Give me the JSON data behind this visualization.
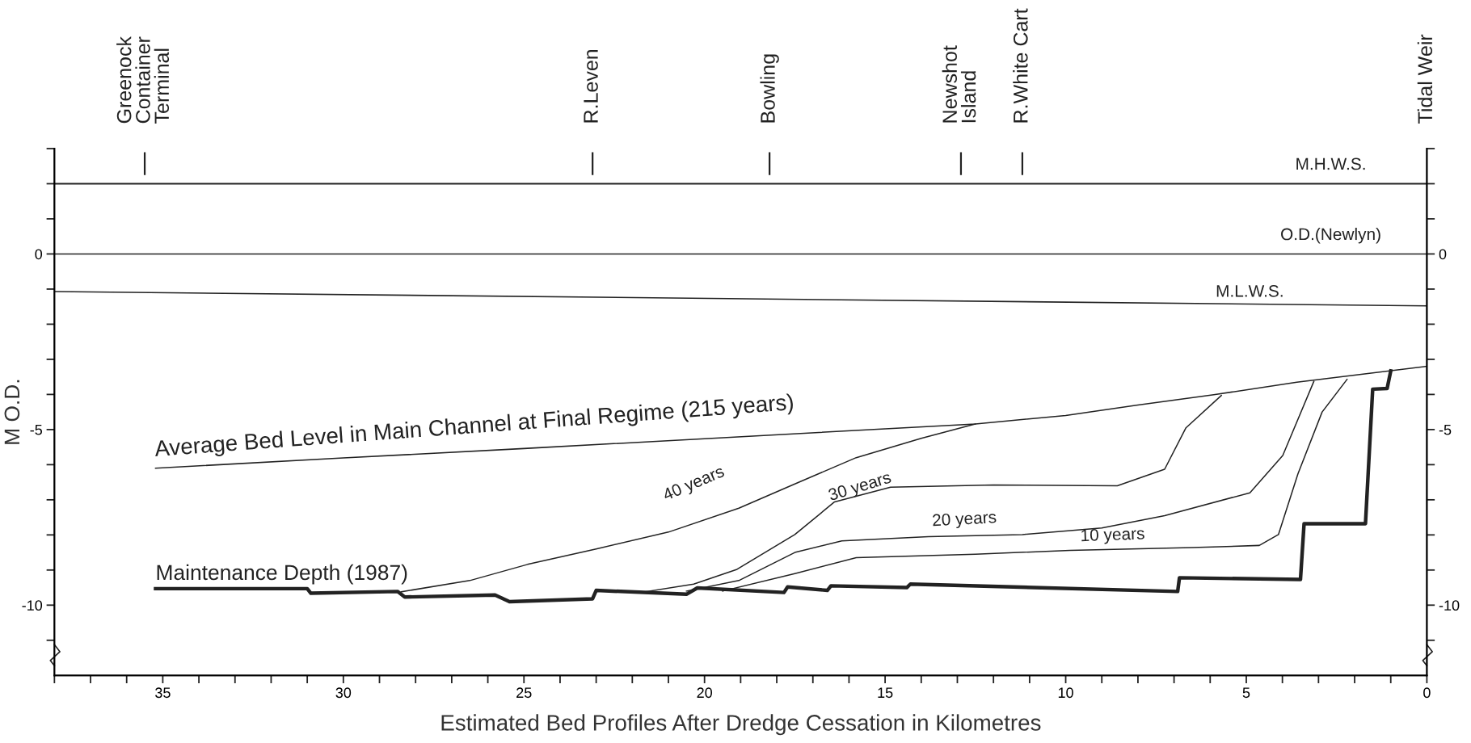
{
  "chart_data": {
    "type": "line",
    "xlabel": "Estimated Bed Profiles After Dredge Cessation in Kilometres",
    "ylabel": "M O.D.",
    "xlim": [
      38,
      0
    ],
    "ylim": [
      -12,
      3
    ],
    "y2lim": [
      -12,
      3
    ],
    "xticks": [
      0,
      {
        "value": 1,
        "label": null
      },
      {
        "value": 2,
        "label": null
      },
      {
        "value": 3,
        "label": null
      },
      {
        "value": 4,
        "label": null
      },
      5,
      {
        "value": 6,
        "label": null
      },
      {
        "value": 7,
        "label": null
      },
      {
        "value": 8,
        "label": null
      },
      {
        "value": 9,
        "label": null
      },
      10,
      {
        "value": 11,
        "label": null
      },
      {
        "value": 12,
        "label": null
      },
      {
        "value": 13,
        "label": null
      },
      {
        "value": 14,
        "label": null
      },
      15,
      {
        "value": 16,
        "label": null
      },
      {
        "value": 17,
        "label": null
      },
      {
        "value": 18,
        "label": null
      },
      {
        "value": 19,
        "label": null
      },
      20,
      {
        "value": 21,
        "label": null
      },
      {
        "value": 22,
        "label": null
      },
      {
        "value": 23,
        "label": null
      },
      {
        "value": 24,
        "label": null
      },
      25,
      {
        "value": 26,
        "label": null
      },
      {
        "value": 27,
        "label": null
      },
      {
        "value": 28,
        "label": null
      },
      {
        "value": 29,
        "label": null
      },
      30,
      {
        "value": 31,
        "label": null
      },
      {
        "value": 32,
        "label": null
      },
      {
        "value": 33,
        "label": null
      },
      {
        "value": 34,
        "label": null
      },
      35,
      {
        "value": 36,
        "label": null
      },
      {
        "value": 37,
        "label": null
      },
      {
        "value": 38,
        "label": null
      }
    ],
    "yticks": [
      {
        "value": -11,
        "label": null
      },
      -10,
      {
        "value": -9,
        "label": null
      },
      {
        "value": -8,
        "label": null
      },
      {
        "value": -7,
        "label": null
      },
      {
        "value": -6,
        "label": null
      },
      -5,
      {
        "value": -4,
        "label": null
      },
      {
        "value": -3,
        "label": null
      },
      {
        "value": -2,
        "label": null
      },
      {
        "value": -1,
        "label": null
      },
      0,
      {
        "value": 1,
        "label": null
      },
      {
        "value": 2,
        "label": null
      },
      {
        "value": 3,
        "label": null
      }
    ],
    "y2ticks": [
      {
        "value": -11,
        "label": null
      },
      -10,
      {
        "value": -9,
        "label": null
      },
      {
        "value": -8,
        "label": null
      },
      {
        "value": -7,
        "label": null
      },
      {
        "value": -6,
        "label": null
      },
      -5,
      {
        "value": -4,
        "label": null
      },
      {
        "value": -3,
        "label": null
      },
      {
        "value": -2,
        "label": null
      },
      {
        "value": -1,
        "label": null
      },
      0,
      {
        "value": 1,
        "label": null
      },
      {
        "value": 2,
        "label": null
      },
      {
        "value": 3,
        "label": null
      }
    ],
    "grid": false,
    "marker": "none",
    "line_style": "solid",
    "ref_lines": [
      {
        "axis": "y",
        "value": 2,
        "label": "M.H.W.S.",
        "color": "#222222"
      },
      {
        "axis": "y",
        "value": 0,
        "label": "O.D.(Newlyn)",
        "color": "#222222"
      }
    ],
    "series": [
      {
        "color": "#222222",
        "x": [
          38,
          0
        ],
        "values": [
          -1.07,
          -1.48
        ]
      },
      {
        "color": "#222222",
        "x": [
          35.2,
          30,
          25,
          20,
          15,
          12.5,
          10,
          8,
          5.9,
          3.6,
          2.0,
          0
        ],
        "values": [
          -6.1,
          -5.81,
          -5.54,
          -5.26,
          -4.98,
          -4.84,
          -4.6,
          -4.3,
          -4.01,
          -3.65,
          -3.45,
          -3.2
        ]
      },
      {
        "color": "#222222",
        "x": [
          35.2,
          31.0,
          30.9,
          28.5,
          28.3,
          25.8,
          25.4,
          23.1,
          23.0,
          20.5,
          20.2,
          17.8,
          17.7,
          16.6,
          16.5,
          14.4,
          14.3,
          6.9,
          6.85,
          3.5,
          3.4,
          1.7,
          1.5,
          1.1,
          1.0
        ],
        "values": [
          -9.53,
          -9.53,
          -9.66,
          -9.61,
          -9.77,
          -9.71,
          -9.9,
          -9.82,
          -9.58,
          -9.69,
          -9.51,
          -9.64,
          -9.48,
          -9.58,
          -9.45,
          -9.5,
          -9.4,
          -9.61,
          -9.22,
          -9.27,
          -7.68,
          -7.68,
          -3.85,
          -3.83,
          -3.33
        ]
      },
      {
        "color": "#222222",
        "x": [
          28.4,
          26.5,
          24.9,
          23,
          21,
          19.05,
          17.5,
          15.8,
          14,
          12.5
        ],
        "values": [
          -9.62,
          -9.3,
          -8.84,
          -8.4,
          -7.92,
          -7.24,
          -6.55,
          -5.8,
          -5.25,
          -4.84
        ]
      },
      {
        "color": "#222222",
        "x": [
          21.7,
          20.3,
          19.1,
          17.5,
          16.4,
          14.85,
          12,
          8.57,
          7.26,
          6.67,
          5.69
        ],
        "values": [
          -9.63,
          -9.4,
          -8.98,
          -7.99,
          -7.06,
          -6.64,
          -6.58,
          -6.6,
          -6.13,
          -4.95,
          -4.03
        ]
      },
      {
        "color": "#222222",
        "x": [
          20.5,
          19.05,
          17.5,
          16.2,
          13.8,
          11.2,
          9,
          7.26,
          4.9,
          3.99,
          3.13
        ],
        "values": [
          -9.6,
          -9.3,
          -8.5,
          -8.17,
          -8.05,
          -7.99,
          -7.8,
          -7.45,
          -6.8,
          -5.74,
          -3.63
        ]
      },
      {
        "color": "#222222",
        "x": [
          19.5,
          17.5,
          15.8,
          12.5,
          9.88,
          6.5,
          4.64,
          4.11,
          3.57,
          2.9,
          2.21
        ],
        "values": [
          -9.6,
          -9.1,
          -8.65,
          -8.55,
          -8.44,
          -8.36,
          -8.3,
          -7.99,
          -6.26,
          -4.5,
          -3.57
        ]
      },
      {
        "color": "#222222",
        "x": [
          35.5,
          35.5
        ],
        "values": [
          2.27,
          2.87
        ]
      },
      {
        "color": "#222222",
        "x": [
          23.1,
          23.1
        ],
        "values": [
          2.27,
          2.87
        ]
      },
      {
        "color": "#222222",
        "x": [
          18.2,
          18.2
        ],
        "values": [
          2.27,
          2.87
        ]
      },
      {
        "color": "#222222",
        "x": [
          12.9,
          12.9
        ],
        "values": [
          2.27,
          2.87
        ]
      },
      {
        "color": "#222222",
        "x": [
          11.2,
          11.2
        ],
        "values": [
          2.27,
          2.87
        ]
      }
    ],
    "annotations": [
      "Greenock\nContainer\nTerminal",
      "R.Leven",
      "Bowling",
      "Newshot\nIsland",
      "R.White Cart",
      "Tidal Weir",
      "M.L.W.S.",
      "Average Bed Level in Main Channel at Final Regime (215 years)",
      "Maintenance Depth (1987)",
      "40 years",
      "30 years",
      "20 years",
      "10 years"
    ]
  }
}
